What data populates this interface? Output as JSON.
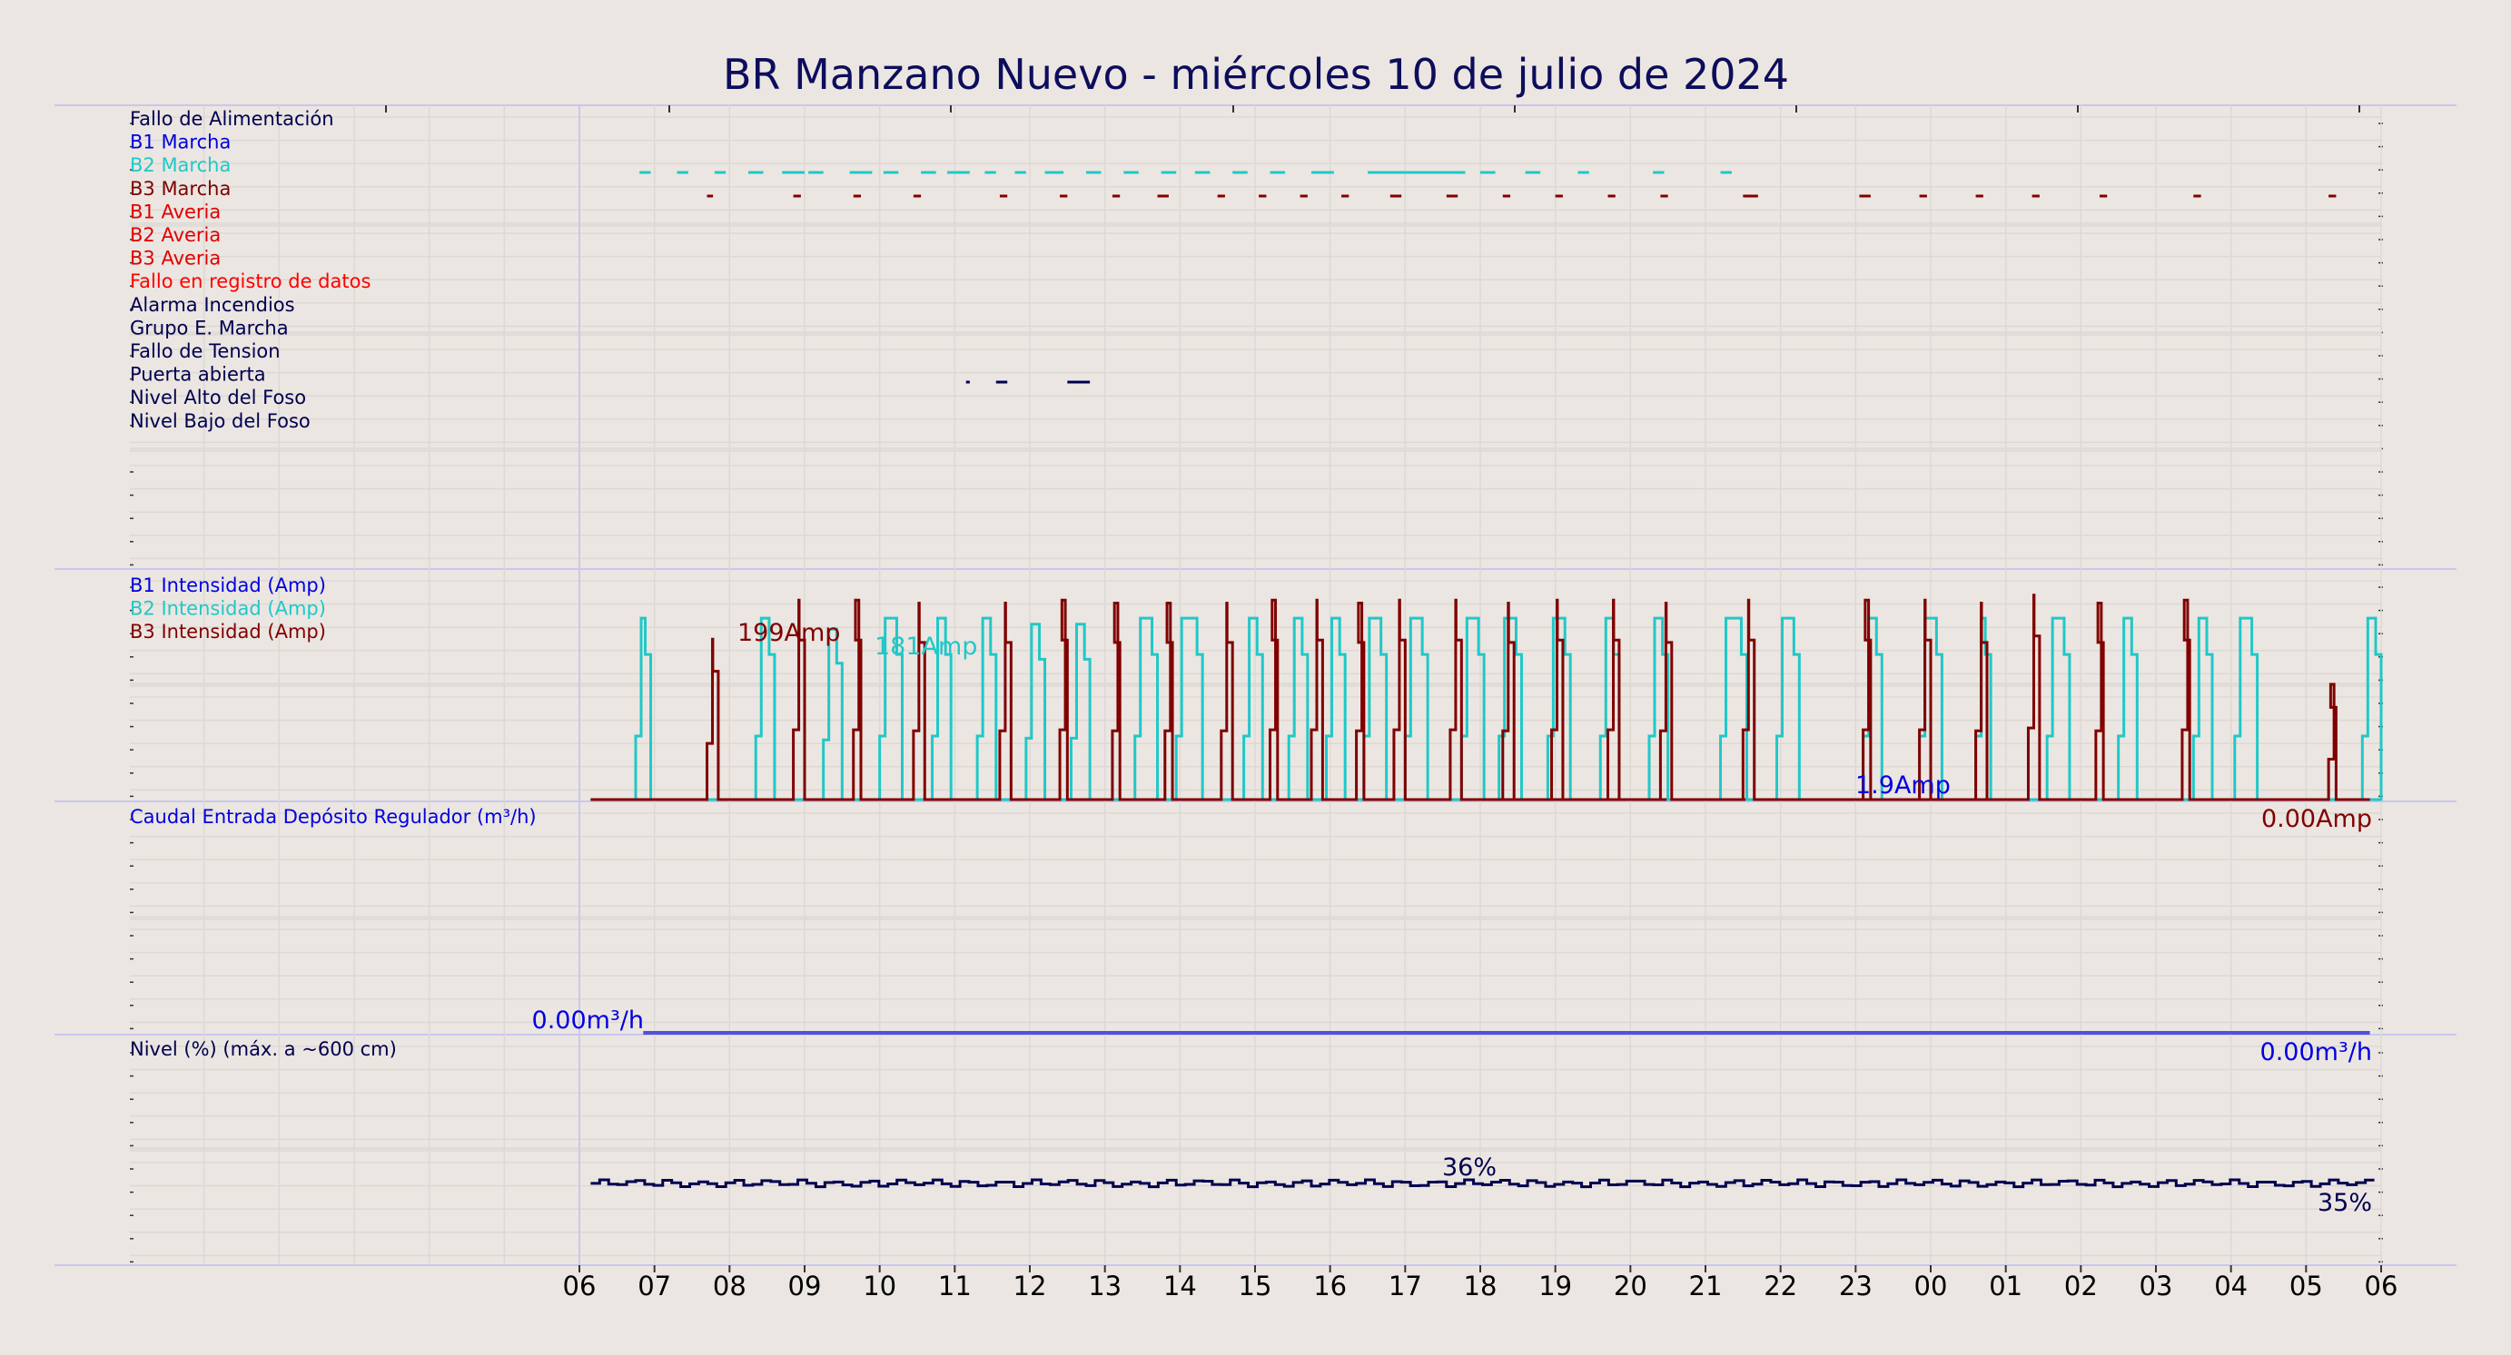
{
  "chart_data": {
    "type": "line",
    "title": "BR Manzano Nuevo   -   miércoles 10 de julio de 2024",
    "x_ticks": [
      "06",
      "07",
      "08",
      "09",
      "10",
      "11",
      "12",
      "13",
      "14",
      "15",
      "16",
      "17",
      "18",
      "19",
      "20",
      "21",
      "22",
      "23",
      "00",
      "01",
      "02",
      "03",
      "04",
      "05",
      "06"
    ],
    "panels": [
      {
        "name": "estados",
        "labels": [
          {
            "text": "Fallo de Alimentación",
            "color": "#000050"
          },
          {
            "text": "B1 Marcha",
            "color": "#0000e0"
          },
          {
            "text": "B2 Marcha",
            "color": "#20c8c8"
          },
          {
            "text": "B3 Marcha",
            "color": "#800000"
          },
          {
            "text": "B1 Averia",
            "color": "#e00000"
          },
          {
            "text": "B2 Averia",
            "color": "#e00000"
          },
          {
            "text": "B3 Averia",
            "color": "#e00000"
          },
          {
            "text": "Fallo en registro de datos",
            "color": "#ff0000"
          },
          {
            "text": "Alarma Incendios",
            "color": "#000050"
          },
          {
            "text": "Grupo E. Marcha",
            "color": "#000050"
          },
          {
            "text": "Fallo de Tension",
            "color": "#000050"
          },
          {
            "text": "Puerta abierta",
            "color": "#000050"
          },
          {
            "text": "Nivel Alto del Foso",
            "color": "#000050"
          },
          {
            "text": "Nivel Bajo del Foso",
            "color": "#000050"
          }
        ],
        "events": {
          "B2 Marcha": [
            [
              6.8,
              6.95
            ],
            [
              7.3,
              7.45
            ],
            [
              7.8,
              7.95
            ],
            [
              8.25,
              8.45
            ],
            [
              8.7,
              9.0
            ],
            [
              9.05,
              9.25
            ],
            [
              9.6,
              9.9
            ],
            [
              10.05,
              10.25
            ],
            [
              10.55,
              10.75
            ],
            [
              10.9,
              11.2
            ],
            [
              11.4,
              11.55
            ],
            [
              11.8,
              11.95
            ],
            [
              12.2,
              12.45
            ],
            [
              12.75,
              12.95
            ],
            [
              13.25,
              13.45
            ],
            [
              13.75,
              13.95
            ],
            [
              14.2,
              14.4
            ],
            [
              14.7,
              14.9
            ],
            [
              15.2,
              15.4
            ],
            [
              15.75,
              16.05
            ],
            [
              16.5,
              17.65
            ],
            [
              17.4,
              17.8
            ],
            [
              18.0,
              18.2
            ],
            [
              18.6,
              18.8
            ],
            [
              19.3,
              19.45
            ],
            [
              20.3,
              20.45
            ],
            [
              21.2,
              21.35
            ]
          ],
          "B3 Marcha": [
            [
              7.7,
              7.78
            ],
            [
              8.85,
              8.95
            ],
            [
              9.65,
              9.75
            ],
            [
              10.45,
              10.55
            ],
            [
              11.6,
              11.7
            ],
            [
              12.4,
              12.5
            ],
            [
              13.1,
              13.2
            ],
            [
              13.7,
              13.85
            ],
            [
              14.5,
              14.6
            ],
            [
              15.05,
              15.15
            ],
            [
              15.6,
              15.7
            ],
            [
              16.15,
              16.25
            ],
            [
              16.8,
              16.95
            ],
            [
              17.55,
              17.7
            ],
            [
              18.3,
              18.4
            ],
            [
              19.0,
              19.1
            ],
            [
              19.7,
              19.8
            ],
            [
              20.4,
              20.5
            ],
            [
              21.5,
              21.7
            ],
            [
              23.05,
              23.2
            ],
            [
              23.85,
              23.95
            ],
            [
              24.6,
              24.7
            ],
            [
              25.35,
              25.45
            ],
            [
              26.25,
              26.35
            ],
            [
              27.5,
              27.6
            ],
            [
              29.3,
              29.4
            ]
          ],
          "Puerta abierta": [
            [
              11.15,
              11.2
            ],
            [
              11.55,
              11.7
            ],
            [
              12.5,
              12.8
            ]
          ]
        }
      },
      {
        "name": "intensidad",
        "labels": [
          {
            "text": "B1 Intensidad (Amp)",
            "color": "#0000e0"
          },
          {
            "text": "B2 Intensidad (Amp)",
            "color": "#20c8c8"
          },
          {
            "text": "B3 Intensidad (Amp)",
            "color": "#800000"
          }
        ],
        "ylim": [
          0,
          230
        ],
        "series": [
          {
            "name": "B2 Intensidad (Amp)",
            "color": "#20c8c8",
            "runs": [
              [
                6.75,
                6.95,
                181
              ],
              [
                8.35,
                8.6,
                181
              ],
              [
                9.25,
                9.5,
                170
              ],
              [
                10.0,
                10.3,
                181
              ],
              [
                10.7,
                10.95,
                181
              ],
              [
                11.3,
                11.55,
                181
              ],
              [
                11.95,
                12.2,
                175
              ],
              [
                12.55,
                12.8,
                175
              ],
              [
                13.4,
                13.7,
                181
              ],
              [
                13.95,
                14.3,
                181
              ],
              [
                14.85,
                15.1,
                181
              ],
              [
                15.45,
                15.7,
                181
              ],
              [
                15.95,
                16.2,
                181
              ],
              [
                16.45,
                16.75,
                181
              ],
              [
                17.0,
                17.3,
                181
              ],
              [
                17.75,
                18.05,
                181
              ],
              [
                18.25,
                18.55,
                181
              ],
              [
                18.9,
                19.2,
                181
              ],
              [
                19.6,
                19.85,
                181
              ],
              [
                20.25,
                20.5,
                181
              ],
              [
                21.2,
                21.55,
                181
              ],
              [
                21.95,
                22.25,
                181
              ],
              [
                23.1,
                23.35,
                181
              ],
              [
                23.85,
                24.15,
                181
              ],
              [
                24.6,
                24.8,
                181
              ],
              [
                25.55,
                25.85,
                181
              ],
              [
                26.5,
                26.75,
                181
              ],
              [
                27.5,
                27.75,
                181
              ],
              [
                28.05,
                28.35,
                181
              ],
              [
                29.75,
                30.0,
                181
              ]
            ]
          },
          {
            "name": "B3 Intensidad (Amp)",
            "color": "#800000",
            "runs": [
              [
                7.7,
                7.85,
                160
              ],
              [
                8.85,
                9.0,
                199
              ],
              [
                9.65,
                9.75,
                199
              ],
              [
                10.45,
                10.6,
                196
              ],
              [
                11.6,
                11.75,
                196
              ],
              [
                12.4,
                12.5,
                199
              ],
              [
                13.1,
                13.2,
                196
              ],
              [
                13.8,
                13.9,
                196
              ],
              [
                14.55,
                14.7,
                196
              ],
              [
                15.2,
                15.3,
                199
              ],
              [
                15.75,
                15.9,
                199
              ],
              [
                16.35,
                16.45,
                196
              ],
              [
                16.85,
                17.0,
                199
              ],
              [
                17.6,
                17.75,
                199
              ],
              [
                18.3,
                18.45,
                196
              ],
              [
                18.95,
                19.1,
                199
              ],
              [
                19.7,
                19.85,
                199
              ],
              [
                20.4,
                20.55,
                196
              ],
              [
                21.5,
                21.65,
                199
              ],
              [
                23.1,
                23.2,
                199
              ],
              [
                23.85,
                24.0,
                199
              ],
              [
                24.6,
                24.75,
                196
              ],
              [
                25.3,
                25.45,
                204
              ],
              [
                26.2,
                26.3,
                196
              ],
              [
                27.35,
                27.45,
                199
              ],
              [
                29.3,
                29.4,
                115
              ]
            ]
          },
          {
            "name": "B1 Intensidad (Amp)",
            "color": "#0000e0",
            "runs": []
          }
        ],
        "annotations": [
          {
            "text": "199Amp",
            "color": "#800000"
          },
          {
            "text": "181Amp",
            "color": "#20c8c8"
          },
          {
            "text": "1.9Amp",
            "color": "#0000e0"
          },
          {
            "text": "0.00Amp",
            "color": "#800000"
          }
        ]
      },
      {
        "name": "caudal",
        "labels": [
          {
            "text": "Caudal Entrada Depósito Regulador (m³/h)",
            "color": "#0000e0"
          }
        ],
        "series": [
          {
            "name": "Caudal Entrada Depósito Regulador (m³/h)",
            "color": "#5050e0",
            "from": 6.85,
            "to": 29.85,
            "value": 0
          }
        ],
        "annotations": [
          {
            "text": "0.00m³/h",
            "color": "#0000e0"
          },
          {
            "text": "0.00m³/h",
            "color": "#0000e0"
          }
        ]
      },
      {
        "name": "nivel",
        "labels": [
          {
            "text": "Nivel (%) (máx. a ~600 cm)",
            "color": "#000050"
          }
        ],
        "ylim": [
          0,
          100
        ],
        "series": [
          {
            "name": "Nivel (%) (máx. a ~600 cm)",
            "color": "#000050",
            "from": 6.15,
            "to": 29.85,
            "base": 35.5,
            "wiggle": 1.5
          }
        ],
        "annotations": [
          {
            "text": "36%",
            "color": "#000050"
          },
          {
            "text": "35%",
            "color": "#000050"
          }
        ]
      }
    ]
  }
}
